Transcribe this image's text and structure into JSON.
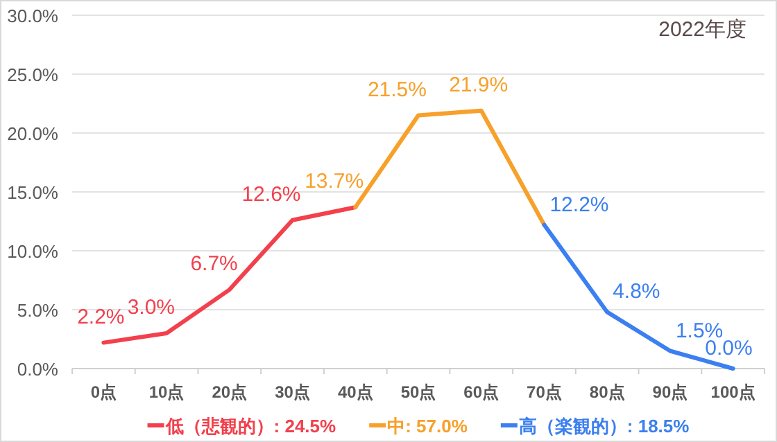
{
  "chart_data": {
    "type": "line",
    "title": "2022年度",
    "categories": [
      "0点",
      "10点",
      "20点",
      "30点",
      "40点",
      "50点",
      "60点",
      "70点",
      "80点",
      "90点",
      "100点"
    ],
    "series": [
      {
        "name": "低（悲観的）: 24.5%",
        "color": "#f2404c",
        "values": [
          2.2,
          3.0,
          6.7,
          12.6,
          13.7,
          null,
          null,
          null,
          null,
          null,
          null
        ],
        "value_labels": [
          "2.2%",
          "3.0%",
          "6.7%",
          "12.6%",
          null,
          null,
          null,
          null,
          null,
          null,
          null
        ]
      },
      {
        "name": "中: 57.0%",
        "color": "#f7a02a",
        "values": [
          null,
          null,
          null,
          null,
          13.7,
          21.5,
          21.9,
          12.2,
          null,
          null,
          null
        ],
        "value_labels": [
          null,
          null,
          null,
          null,
          "13.7%",
          "21.5%",
          "21.9%",
          null,
          null,
          null,
          null
        ]
      },
      {
        "name": "高（楽観的）: 18.5%",
        "color": "#3b7ff0",
        "values": [
          null,
          null,
          null,
          null,
          null,
          null,
          null,
          12.2,
          4.8,
          1.5,
          0.0
        ],
        "value_labels": [
          null,
          null,
          null,
          null,
          null,
          null,
          null,
          "12.2%",
          "4.8%",
          "1.5%",
          "0.0%"
        ]
      }
    ],
    "ylim": [
      0,
      30
    ],
    "yticks": [
      {
        "value": 0,
        "label": "0.0%"
      },
      {
        "value": 5,
        "label": "5.0%"
      },
      {
        "value": 10,
        "label": "10.0%"
      },
      {
        "value": 15,
        "label": "15.0%"
      },
      {
        "value": 20,
        "label": "20.0%"
      },
      {
        "value": 25,
        "label": "25.0%"
      },
      {
        "value": 30,
        "label": "30.0%"
      }
    ],
    "grid": "y",
    "legend": "bottom",
    "marker": "none",
    "line_style": "solid"
  }
}
